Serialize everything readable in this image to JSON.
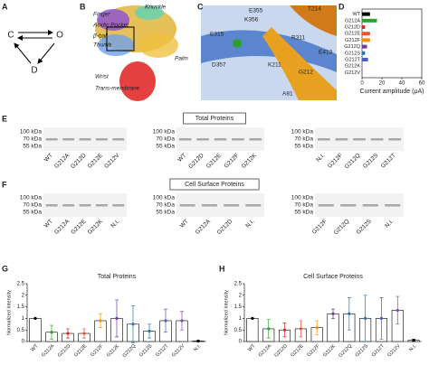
{
  "panel_labels": [
    "A",
    "B",
    "C",
    "D",
    "E",
    "F",
    "G",
    "H"
  ],
  "panel_a": {
    "nodes": [
      "C",
      "O",
      "D"
    ]
  },
  "panel_b": {
    "labels": [
      "Finger",
      "Knuckle",
      "Acidic Pocket",
      "β-ball",
      "Thumb",
      "Palm",
      "Wrist",
      "Trans-membrane"
    ]
  },
  "panel_c": {
    "labels": [
      "E355",
      "K356",
      "T214",
      "E315",
      "R311",
      "E413",
      "D357",
      "K211",
      "G212",
      "A81"
    ]
  },
  "panel_d": {
    "categories": [
      "WT",
      "G212A",
      "G212D",
      "G212E",
      "G212F",
      "G212Q",
      "G212S",
      "G212T",
      "G212K",
      "G212V"
    ],
    "values": [
      8,
      15,
      3,
      8,
      8,
      5,
      3,
      6,
      0.5,
      0.5
    ],
    "colors": [
      "#000000",
      "#2ca02c",
      "#d62728",
      "#e8552a",
      "#ff8c00",
      "#6a3d9a",
      "#1f77b4",
      "#4b5cc4",
      "#9467bd",
      "#8e44ad"
    ],
    "xlim": [
      0,
      60
    ],
    "xticks": [
      0,
      20,
      40,
      60
    ],
    "xlabel": "Current amplitude (μA)"
  },
  "panel_e": {
    "title": "Total Proteins",
    "ladder": [
      "100 kDa",
      "70 kDa",
      "55 kDa"
    ],
    "blots": [
      {
        "lanes": [
          "WT",
          "G212A",
          "G212D",
          "G212E",
          "G212V"
        ]
      },
      {
        "lanes": [
          "WT",
          "G212D",
          "G212E",
          "G212F",
          "G212K"
        ]
      },
      {
        "lanes": [
          "N.I.",
          "G212F",
          "G212Q",
          "G212S",
          "G212T"
        ]
      }
    ]
  },
  "panel_f": {
    "title": "Cell Surface Proteins",
    "ladder": [
      "100 kDa",
      "70 kDa",
      "55 kDa"
    ],
    "blots": [
      {
        "lanes": [
          "WT",
          "G212A",
          "G212E",
          "G212K",
          "N.I."
        ]
      },
      {
        "lanes": [
          "WT",
          "G212A",
          "G212D",
          "N.I."
        ]
      },
      {
        "lanes": [
          "G212F",
          "G212Q",
          "G212S",
          "N.I."
        ]
      }
    ]
  },
  "panel_g": {
    "title": "Total Proteins",
    "ylabel": "Normalized Intensity",
    "categories": [
      "WT",
      "G212A",
      "G212D",
      "G212E",
      "G212F",
      "G212K",
      "G212Q",
      "G212S",
      "G212T",
      "G212V",
      "N.I."
    ],
    "values": [
      1,
      0.4,
      0.35,
      0.35,
      0.9,
      1,
      0.75,
      0.45,
      0.9,
      0.9,
      0.02
    ],
    "errors": [
      0,
      0.3,
      0.2,
      0.2,
      0.3,
      0.8,
      0.8,
      0.3,
      0.5,
      0.4,
      0.02
    ],
    "colors": [
      "#000000",
      "#2ca02c",
      "#d62728",
      "#e8552a",
      "#ff8c00",
      "#6a3d9a",
      "#1f77b4",
      "#1f77b4",
      "#4b5cc4",
      "#8e44ad",
      "#000000"
    ],
    "ylim": [
      0,
      2.5
    ],
    "yticks": [
      0,
      0.5,
      1,
      1.5,
      2,
      2.5
    ]
  },
  "panel_h": {
    "title": "Cell Surface Proteins",
    "ylabel": "Normalized Intensity",
    "categories": [
      "WT",
      "G212A",
      "G212D",
      "G212E",
      "G212F",
      "G212K",
      "G212Q",
      "G212S",
      "G212T",
      "G212V",
      "N.I."
    ],
    "values": [
      1,
      0.55,
      0.5,
      0.55,
      0.6,
      1.2,
      1.2,
      1,
      1,
      1.35,
      0.05
    ],
    "errors": [
      0,
      0.4,
      0.3,
      0.35,
      0.3,
      0.2,
      0.7,
      1,
      0.9,
      0.6,
      0.05
    ],
    "colors": [
      "#000000",
      "#2ca02c",
      "#d62728",
      "#e8552a",
      "#ff8c00",
      "#6a3d9a",
      "#1f77b4",
      "#1f77b4",
      "#4b5cc4",
      "#8e44ad",
      "#000000"
    ],
    "ylim": [
      0,
      2.5
    ],
    "yticks": [
      0,
      0.5,
      1,
      1.5,
      2,
      2.5
    ]
  }
}
